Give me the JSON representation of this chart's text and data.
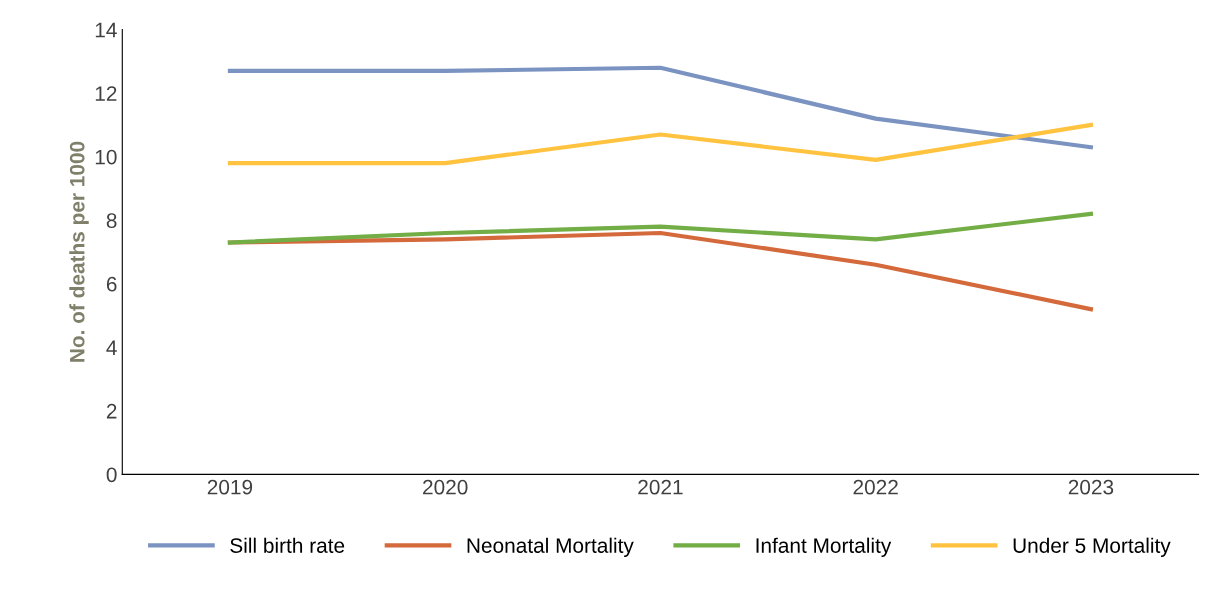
{
  "chart_data": {
    "type": "line",
    "ylabel": "No. of deaths per 1000",
    "categories": [
      "2019",
      "2020",
      "2021",
      "2022",
      "2023"
    ],
    "series": [
      {
        "name": "Sill birth rate",
        "color": "#7a93c0",
        "values": [
          12.7,
          12.7,
          12.8,
          11.2,
          10.3
        ]
      },
      {
        "name": "Neonatal Mortality",
        "color": "#d4693c",
        "values": [
          7.3,
          7.4,
          7.6,
          6.6,
          5.2
        ]
      },
      {
        "name": "Infant Mortality",
        "color": "#72ad46",
        "values": [
          7.3,
          7.6,
          7.8,
          7.4,
          8.2
        ]
      },
      {
        "name": "Under 5 Mortality",
        "color": "#ffc340",
        "values": [
          9.8,
          9.8,
          10.7,
          9.9,
          11.0
        ]
      }
    ],
    "ylim": [
      0,
      14
    ],
    "yticks": [
      0,
      2,
      4,
      6,
      8,
      10,
      12,
      14
    ],
    "grid": false,
    "legend": "bottom",
    "marker": "none",
    "line_style": "solid"
  }
}
